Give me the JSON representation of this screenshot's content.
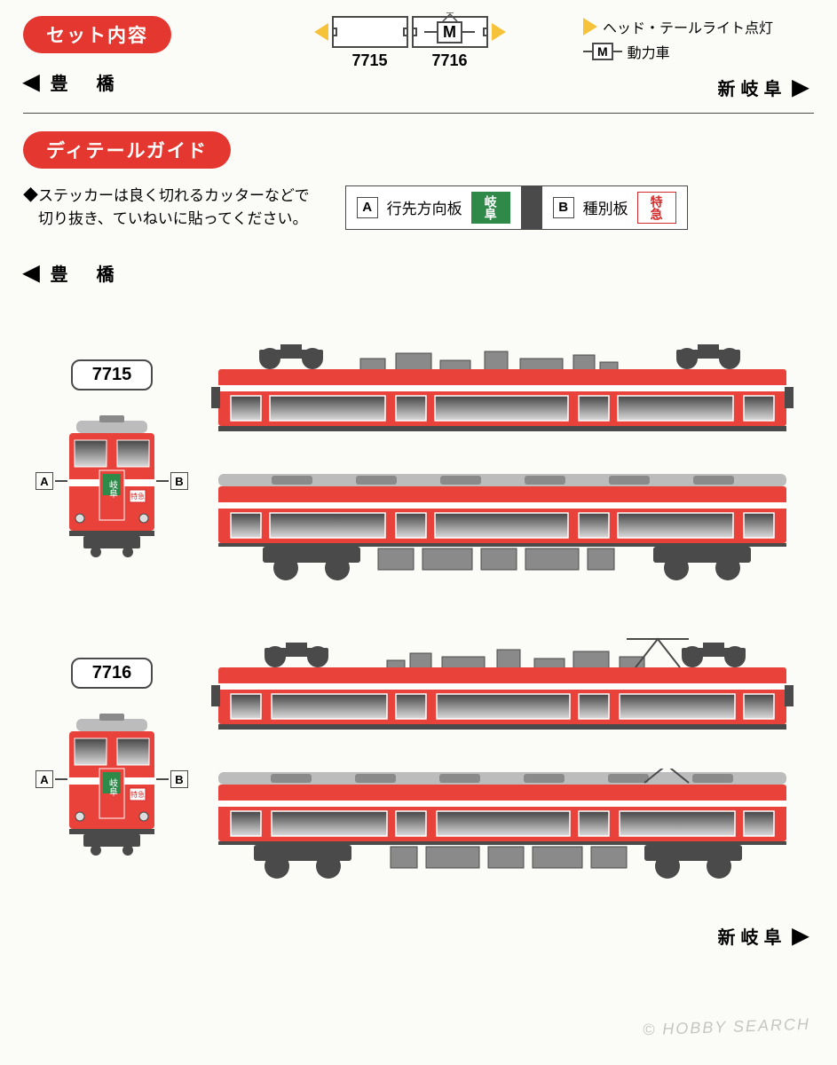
{
  "colors": {
    "pill_bg": "#e33730",
    "train_red": "#e8423a",
    "train_dark": "#4a4a4a",
    "white": "#ffffff",
    "gray_equip": "#8a8a8a",
    "gray_light": "#bcbcbc",
    "window_top": "#444444",
    "window_bot": "#dcdcdc",
    "yellow_tri": "#f6c23a",
    "black_tri": "#3a3a3a",
    "page_bg": "#fbfbf8",
    "dest_chip_bg": "#2f8a4a",
    "dest_chip_fg": "#ffffff",
    "type_chip_bg": "#ffffff",
    "type_chip_fg": "#d02a2a",
    "type_chip_border": "#d02a2a"
  },
  "header": {
    "set_contents_label": "セット内容",
    "left_dest": "豊　橋",
    "right_dest": "新岐阜",
    "cars": [
      {
        "num": "7715",
        "motor": false,
        "pantograph": false
      },
      {
        "num": "7716",
        "motor": true,
        "pantograph": true
      }
    ],
    "legend": {
      "light": "ヘッド・テールライト点灯",
      "motor": "動力車",
      "motor_icon": "M"
    }
  },
  "detail": {
    "title": "ディテールガイド",
    "note_line1": "◆ステッカーは良く切れるカッターなどで",
    "note_line2": "　切り抜き、ていねいに貼ってください。",
    "a_key": "A",
    "a_label": "行先方向板",
    "a_chip_text": "岐阜",
    "b_key": "B",
    "b_label": "種別板",
    "b_chip_text": "特急",
    "left_dest": "豊　橋",
    "right_dest": "新岐阜"
  },
  "cars": [
    {
      "num": "7715",
      "pantograph": false
    },
    {
      "num": "7716",
      "pantograph": true
    }
  ],
  "front_markers": {
    "a": "A",
    "b": "B"
  },
  "watermark": "© HOBBY SEARCH"
}
